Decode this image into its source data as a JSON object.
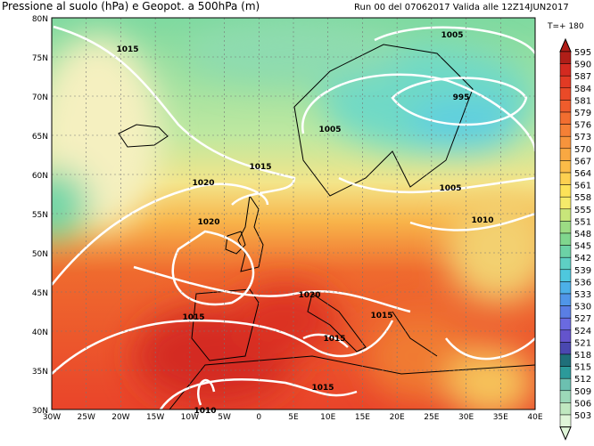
{
  "header": {
    "title": "Pressione al suolo (hPa) e Geopot. a 500hPa (m)",
    "run": "Run 00 del 07062017  Valida alle 12Z14JUN2017",
    "step": "T=+ 180"
  },
  "map": {
    "lat_labels": [
      "80N",
      "75N",
      "70N",
      "65N",
      "60N",
      "55N",
      "50N",
      "45N",
      "40N",
      "35N",
      "30N"
    ],
    "lon_labels": [
      "30W",
      "25W",
      "20W",
      "15W",
      "10W",
      "5W",
      "0",
      "5E",
      "10E",
      "15E",
      "20E",
      "25E",
      "30E",
      "35E",
      "40E"
    ],
    "isobar_labels": [
      "1005",
      "1015",
      "995",
      "1005",
      "1015",
      "1020",
      "1020",
      "1005",
      "1010",
      "1020",
      "1015",
      "1015",
      "1015",
      "1015",
      "1010"
    ]
  },
  "legend": {
    "values": [
      "595",
      "590",
      "587",
      "584",
      "581",
      "579",
      "576",
      "573",
      "570",
      "567",
      "564",
      "561",
      "558",
      "555",
      "551",
      "548",
      "545",
      "542",
      "539",
      "536",
      "533",
      "530",
      "527",
      "524",
      "521",
      "518",
      "515",
      "512",
      "509",
      "506",
      "503"
    ]
  }
}
